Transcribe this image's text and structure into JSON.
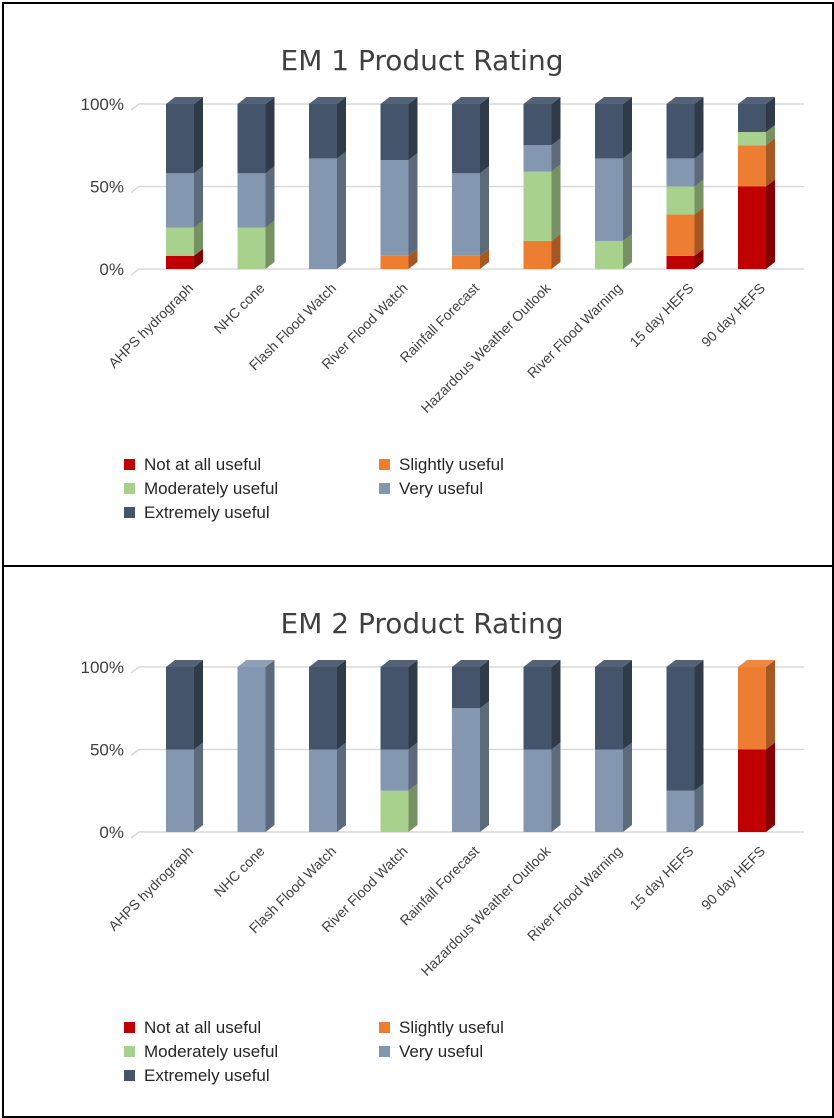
{
  "chart_data": [
    {
      "type": "bar",
      "stacked": true,
      "percent": true,
      "title": "EM 1 Product Rating",
      "categories": [
        "AHPS hydrograph",
        "NHC cone",
        "Flash Flood Watch",
        "River Flood Watch",
        "Rainfall Forecast",
        "Hazardous Weather Outlook",
        "River Flood Warning",
        "15 day HEFS",
        "90 day HEFS"
      ],
      "yticks": [
        "0%",
        "50%",
        "100%"
      ],
      "ylim": [
        0,
        100
      ],
      "grid": true,
      "legend_position": "bottom",
      "series": [
        {
          "name": "Not at all useful",
          "color": "#c00000",
          "values": [
            8,
            0,
            0,
            0,
            0,
            0,
            0,
            8,
            50
          ]
        },
        {
          "name": "Slightly useful",
          "color": "#ed7d31",
          "values": [
            0,
            0,
            0,
            8,
            8,
            17,
            0,
            25,
            25
          ]
        },
        {
          "name": "Moderately useful",
          "color": "#a9d18e",
          "values": [
            17,
            25,
            0,
            0,
            0,
            42,
            17,
            17,
            8
          ]
        },
        {
          "name": "Very useful",
          "color": "#8497b0",
          "values": [
            33,
            33,
            67,
            58,
            50,
            16,
            50,
            17,
            0
          ]
        },
        {
          "name": "Extremely useful",
          "color": "#44546a",
          "values": [
            42,
            42,
            33,
            34,
            42,
            25,
            33,
            33,
            17
          ]
        }
      ]
    },
    {
      "type": "bar",
      "stacked": true,
      "percent": true,
      "title": "EM 2 Product Rating",
      "categories": [
        "AHPS hydrograph",
        "NHC cone",
        "Flash Flood Watch",
        "River Flood Watch",
        "Rainfall Forecast",
        "Hazardous Weather Outlook",
        "River Flood Warning",
        "15 day HEFS",
        "90 day HEFS"
      ],
      "yticks": [
        "0%",
        "50%",
        "100%"
      ],
      "ylim": [
        0,
        100
      ],
      "grid": true,
      "legend_position": "bottom",
      "series": [
        {
          "name": "Not at all useful",
          "color": "#c00000",
          "values": [
            0,
            0,
            0,
            0,
            0,
            0,
            0,
            0,
            50
          ]
        },
        {
          "name": "Slightly useful",
          "color": "#ed7d31",
          "values": [
            0,
            0,
            0,
            0,
            0,
            0,
            0,
            0,
            50
          ]
        },
        {
          "name": "Moderately useful",
          "color": "#a9d18e",
          "values": [
            0,
            0,
            0,
            25,
            0,
            0,
            0,
            0,
            0
          ]
        },
        {
          "name": "Very useful",
          "color": "#8497b0",
          "values": [
            50,
            100,
            50,
            25,
            75,
            50,
            50,
            25,
            0
          ]
        },
        {
          "name": "Extremely useful",
          "color": "#44546a",
          "values": [
            50,
            0,
            50,
            50,
            25,
            50,
            50,
            75,
            0
          ]
        }
      ]
    }
  ]
}
